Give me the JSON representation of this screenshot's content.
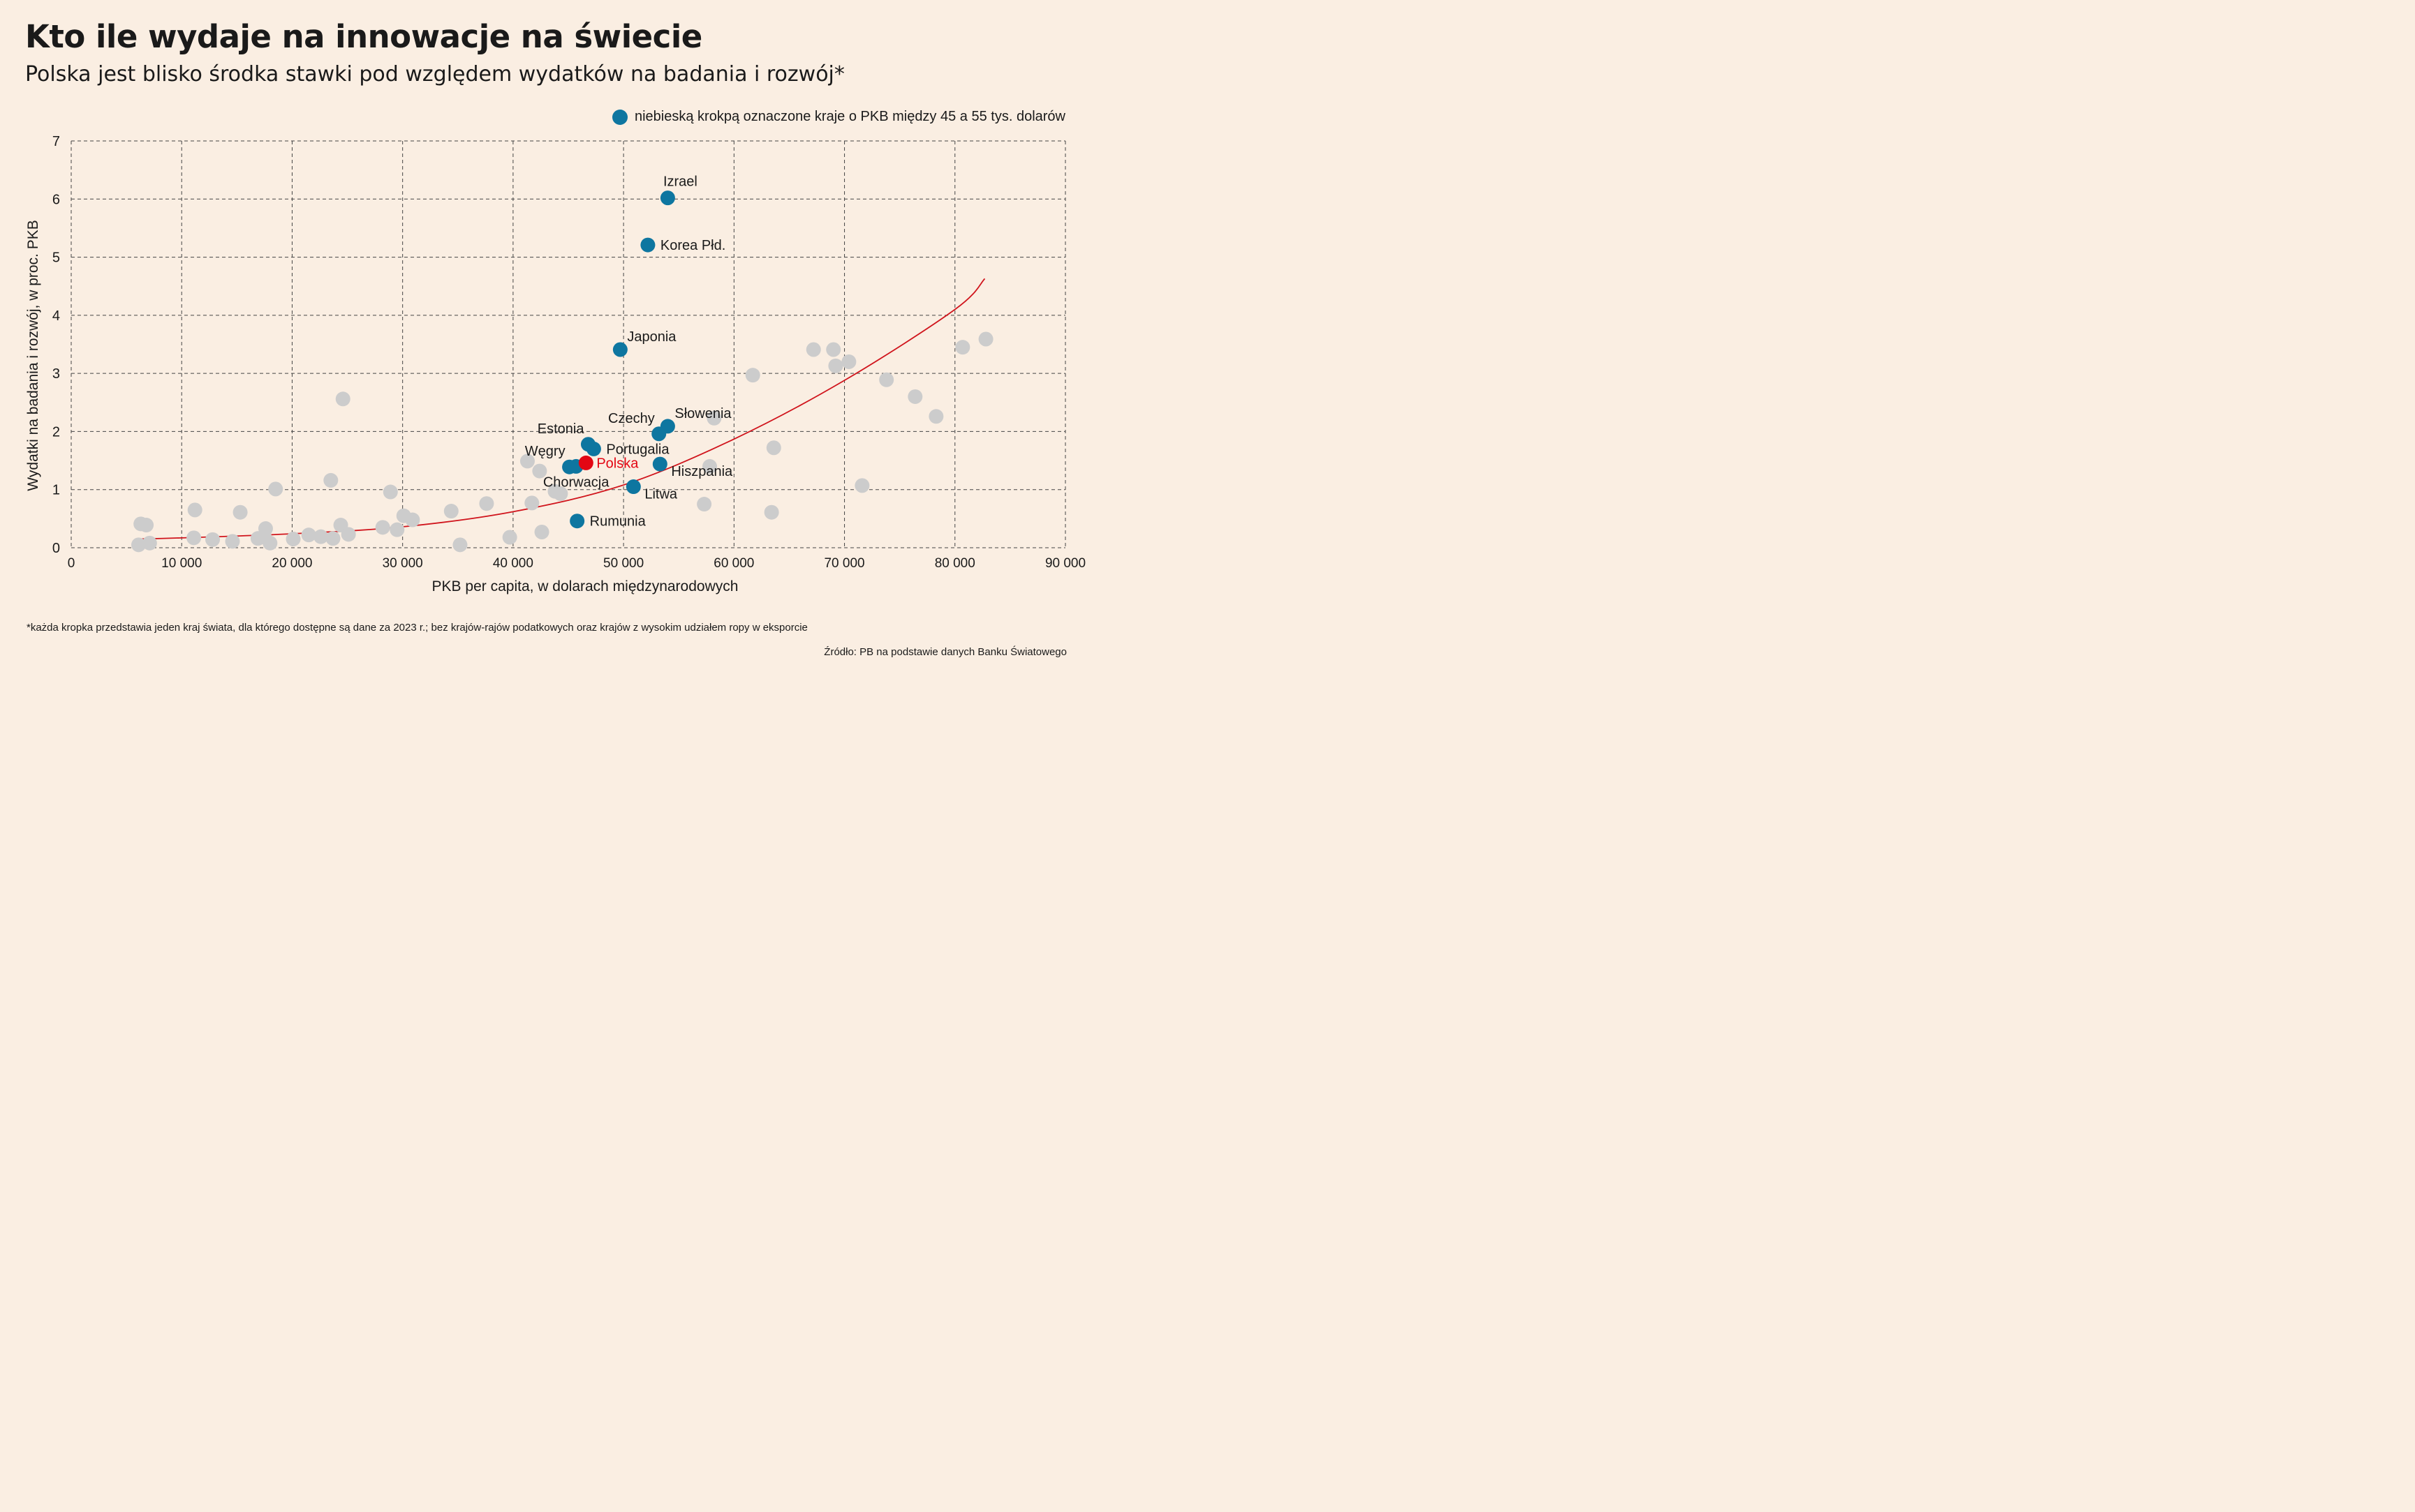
{
  "title": "Kto ile wydaje na innowacje na świecie",
  "subtitle": "Polska jest blisko środka stawki pod względem wydatków na badania i rozwój*",
  "legend": {
    "label": "niebieską krokpą oznaczone kraje o PKB między 45 a 55 tys. dolarów"
  },
  "footnote": "*każda kropka przedstawia jeden kraj świata, dla którego dostępne są dane za 2023 r.; bez krajów-rajów podatkowych oraz krajów z wysokim udziałem ropy w eksporcie",
  "source": "Źródło: PB na podstawie danych Banku Światowego",
  "colors": {
    "background": "#faeee2",
    "highlight": "#0e76a0",
    "polska": "#e30613",
    "other": "#cccccc",
    "trend": "#d0141c",
    "grid": "#444444"
  },
  "chart_data": {
    "type": "scatter",
    "xlabel": "PKB per capita, w dolarach międzynarodowych",
    "ylabel": "Wydatki na badania i rozwój, w proc. PKB",
    "xlim": [
      0,
      90000
    ],
    "ylim": [
      0,
      7
    ],
    "x_ticks": [
      0,
      10000,
      20000,
      30000,
      40000,
      50000,
      60000,
      70000,
      80000,
      90000
    ],
    "x_tick_labels": [
      "0",
      "10 000",
      "20 000",
      "30 000",
      "40 000",
      "50 000",
      "60 000",
      "70 000",
      "80 000",
      "90 000"
    ],
    "y_ticks": [
      0,
      1,
      2,
      3,
      4,
      5,
      6,
      7
    ],
    "y_tick_labels": [
      "0",
      "1",
      "2",
      "3",
      "4",
      "5",
      "6",
      "7"
    ],
    "grid": "dashed",
    "legend_position": "top-right",
    "highlighted": [
      {
        "label": "Izrael",
        "x": 54000,
        "y": 6.02,
        "anchor": "above"
      },
      {
        "label": "Korea Płd.",
        "x": 52200,
        "y": 5.21,
        "anchor": "right"
      },
      {
        "label": "Japonia",
        "x": 49700,
        "y": 3.41,
        "anchor": "upper-right"
      },
      {
        "label": "Słowenia",
        "x": 54000,
        "y": 2.09,
        "anchor": "upper-right"
      },
      {
        "label": "Czechy",
        "x": 53200,
        "y": 1.96,
        "anchor": "upper-left"
      },
      {
        "label": "Estonia",
        "x": 46800,
        "y": 1.78,
        "anchor": "upper-left"
      },
      {
        "label": "Portugalia",
        "x": 47300,
        "y": 1.7,
        "anchor": "right"
      },
      {
        "label": "Węgry",
        "x": 45100,
        "y": 1.39,
        "anchor": "upper-left"
      },
      {
        "label": "Chorwacja",
        "x": 45700,
        "y": 1.4,
        "anchor": "below"
      },
      {
        "label": "Hiszpania",
        "x": 53300,
        "y": 1.44,
        "anchor": "lower-right"
      },
      {
        "label": "Litwa",
        "x": 50900,
        "y": 1.05,
        "anchor": "lower-right"
      },
      {
        "label": "Rumunia",
        "x": 45800,
        "y": 0.46,
        "anchor": "right"
      }
    ],
    "polska": {
      "label": "Polska",
      "x": 46600,
      "y": 1.46
    },
    "others": [
      [
        6100,
        0.05
      ],
      [
        6300,
        0.41
      ],
      [
        6800,
        0.39
      ],
      [
        7100,
        0.08
      ],
      [
        11100,
        0.17
      ],
      [
        11200,
        0.65
      ],
      [
        12800,
        0.14
      ],
      [
        14600,
        0.11
      ],
      [
        15300,
        0.61
      ],
      [
        16900,
        0.16
      ],
      [
        17500,
        0.18
      ],
      [
        17600,
        0.33
      ],
      [
        18000,
        0.08
      ],
      [
        18500,
        1.01
      ],
      [
        20100,
        0.15
      ],
      [
        21500,
        0.22
      ],
      [
        22600,
        0.19
      ],
      [
        23500,
        1.16
      ],
      [
        23700,
        0.16
      ],
      [
        24400,
        0.39
      ],
      [
        24600,
        2.56
      ],
      [
        25100,
        0.23
      ],
      [
        28200,
        0.35
      ],
      [
        28900,
        0.96
      ],
      [
        29500,
        0.31
      ],
      [
        30100,
        0.55
      ],
      [
        30900,
        0.48
      ],
      [
        34400,
        0.63
      ],
      [
        35200,
        0.05
      ],
      [
        37600,
        0.76
      ],
      [
        39700,
        0.18
      ],
      [
        41300,
        1.49
      ],
      [
        41700,
        0.77
      ],
      [
        42400,
        1.32
      ],
      [
        42600,
        0.27
      ],
      [
        43800,
        0.97
      ],
      [
        44300,
        0.93
      ],
      [
        57300,
        0.75
      ],
      [
        57800,
        1.4
      ],
      [
        58200,
        2.23
      ],
      [
        61700,
        2.97
      ],
      [
        63400,
        0.61
      ],
      [
        63600,
        1.72
      ],
      [
        67200,
        3.41
      ],
      [
        69000,
        3.41
      ],
      [
        69200,
        3.13
      ],
      [
        70400,
        3.2
      ],
      [
        71600,
        1.07
      ],
      [
        73800,
        2.89
      ],
      [
        76400,
        2.6
      ],
      [
        78300,
        2.26
      ],
      [
        80700,
        3.45
      ],
      [
        82800,
        3.59
      ]
    ],
    "trend": {
      "label": "",
      "x": [
        6000,
        10000,
        20000,
        30000,
        40000,
        50000,
        60000,
        70000,
        80000,
        82700
      ],
      "y": [
        0.15,
        0.17,
        0.24,
        0.36,
        0.62,
        1.08,
        1.87,
        2.88,
        4.1,
        4.63
      ]
    }
  }
}
